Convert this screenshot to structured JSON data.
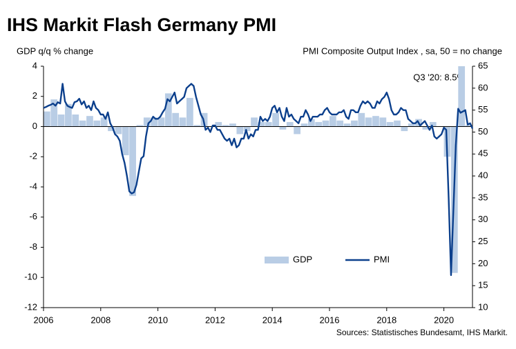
{
  "chart_data": {
    "type": "combo",
    "title": "IHS Markit Flash Germany PMI",
    "y_label": "GDP q/q % change",
    "y2_label": "PMI Composite  Output Index , sa, 50 = no change",
    "source": "Sources: Statistisches Bundesamt, IHS Markit.",
    "annotations": [
      {
        "text": "Q3 '20: 8.5%"
      }
    ],
    "legend": "lower right",
    "xlim": [
      2006,
      2021
    ],
    "xticks": [
      2006,
      2008,
      2010,
      2012,
      2014,
      2016,
      2018,
      2020
    ],
    "ylim": [
      -12,
      4
    ],
    "yticks": [
      4,
      2,
      0,
      -2,
      -4,
      -6,
      -8,
      -10,
      -12
    ],
    "y2lim": [
      10,
      65
    ],
    "y2ticks": [
      65,
      60,
      55,
      50,
      45,
      40,
      35,
      30,
      25,
      20,
      15,
      10
    ],
    "series": [
      {
        "name": "GDP",
        "type": "bar",
        "color": "#b9cde5",
        "x": [
          2006,
          2006.25,
          2006.5,
          2006.75,
          2007,
          2007.25,
          2007.5,
          2007.75,
          2008,
          2008.25,
          2008.5,
          2008.75,
          2009,
          2009.25,
          2009.5,
          2009.75,
          2010,
          2010.25,
          2010.5,
          2010.75,
          2011,
          2011.25,
          2011.5,
          2011.75,
          2012,
          2012.25,
          2012.5,
          2012.75,
          2013,
          2013.25,
          2013.5,
          2013.75,
          2014,
          2014.25,
          2014.5,
          2014.75,
          2015,
          2015.25,
          2015.5,
          2015.75,
          2016,
          2016.25,
          2016.5,
          2016.75,
          2017,
          2017.25,
          2017.5,
          2017.75,
          2018,
          2018.25,
          2018.5,
          2018.75,
          2019,
          2019.25,
          2019.5,
          2019.75,
          2020,
          2020.25,
          2020.5,
          2020.75
        ],
        "values": [
          1.0,
          1.8,
          0.8,
          1.5,
          0.8,
          0.4,
          0.7,
          0.4,
          0.6,
          -0.3,
          -0.5,
          -1.9,
          -4.6,
          0.1,
          0.6,
          0.6,
          0.6,
          2.2,
          0.9,
          0.6,
          1.9,
          0.1,
          0.9,
          0.0,
          0.3,
          0.1,
          0.2,
          -0.5,
          -0.3,
          0.6,
          0.3,
          0.3,
          0.9,
          -0.2,
          0.3,
          -0.5,
          0.2,
          0.5,
          0.3,
          0.4,
          0.7,
          0.4,
          0.2,
          0.4,
          0.9,
          0.6,
          0.7,
          0.6,
          0.3,
          0.4,
          -0.3,
          0.2,
          0.5,
          -0.2,
          0.3,
          0.0,
          -2.0,
          -9.7,
          8.5,
          0.1
        ]
      },
      {
        "name": "PMI",
        "type": "line",
        "color": "#0b3f8c",
        "axis": "y2",
        "x": [
          2006,
          2006.083,
          2006.167,
          2006.25,
          2006.333,
          2006.417,
          2006.5,
          2006.583,
          2006.667,
          2006.75,
          2006.833,
          2006.917,
          2007,
          2007.083,
          2007.167,
          2007.25,
          2007.333,
          2007.417,
          2007.5,
          2007.583,
          2007.667,
          2007.75,
          2007.833,
          2007.917,
          2008,
          2008.083,
          2008.167,
          2008.25,
          2008.333,
          2008.417,
          2008.5,
          2008.583,
          2008.667,
          2008.75,
          2008.833,
          2008.917,
          2009,
          2009.083,
          2009.167,
          2009.25,
          2009.333,
          2009.417,
          2009.5,
          2009.583,
          2009.667,
          2009.75,
          2009.833,
          2009.917,
          2010,
          2010.083,
          2010.167,
          2010.25,
          2010.333,
          2010.417,
          2010.5,
          2010.583,
          2010.667,
          2010.75,
          2010.833,
          2010.917,
          2011,
          2011.083,
          2011.167,
          2011.25,
          2011.333,
          2011.417,
          2011.5,
          2011.583,
          2011.667,
          2011.75,
          2011.833,
          2011.917,
          2012,
          2012.083,
          2012.167,
          2012.25,
          2012.333,
          2012.417,
          2012.5,
          2012.583,
          2012.667,
          2012.75,
          2012.833,
          2012.917,
          2013,
          2013.083,
          2013.167,
          2013.25,
          2013.333,
          2013.417,
          2013.5,
          2013.583,
          2013.667,
          2013.75,
          2013.833,
          2013.917,
          2014,
          2014.083,
          2014.167,
          2014.25,
          2014.333,
          2014.417,
          2014.5,
          2014.583,
          2014.667,
          2014.75,
          2014.833,
          2014.917,
          2015,
          2015.083,
          2015.167,
          2015.25,
          2015.333,
          2015.417,
          2015.5,
          2015.583,
          2015.667,
          2015.75,
          2015.833,
          2015.917,
          2016,
          2016.083,
          2016.167,
          2016.25,
          2016.333,
          2016.417,
          2016.5,
          2016.583,
          2016.667,
          2016.75,
          2016.833,
          2016.917,
          2017,
          2017.083,
          2017.167,
          2017.25,
          2017.333,
          2017.417,
          2017.5,
          2017.583,
          2017.667,
          2017.75,
          2017.833,
          2017.917,
          2018,
          2018.083,
          2018.167,
          2018.25,
          2018.333,
          2018.417,
          2018.5,
          2018.583,
          2018.667,
          2018.75,
          2018.833,
          2018.917,
          2019,
          2019.083,
          2019.167,
          2019.25,
          2019.333,
          2019.417,
          2019.5,
          2019.583,
          2019.667,
          2019.75,
          2019.833,
          2019.917,
          2020,
          2020.083,
          2020.167,
          2020.25,
          2020.333,
          2020.417,
          2020.5,
          2020.583,
          2020.667,
          2020.75,
          2020.833,
          2020.917,
          2021
        ],
        "values": [
          55.5,
          55.7,
          56.0,
          56.2,
          56.5,
          56.0,
          56.8,
          56.5,
          61.0,
          57.0,
          56.0,
          55.7,
          55.5,
          56.8,
          57.0,
          57.6,
          56.3,
          57.0,
          55.5,
          56.0,
          55.0,
          57.0,
          55.5,
          55.0,
          54.0,
          54.0,
          53.0,
          54.5,
          52.0,
          51.0,
          49.5,
          49.0,
          48.0,
          45.0,
          43.0,
          40.0,
          36.5,
          36.0,
          36.3,
          38.0,
          41.0,
          44.0,
          44.5,
          49.0,
          52.0,
          52.5,
          53.5,
          53.0,
          53.0,
          53.5,
          54.5,
          55.3,
          57.5,
          57.0,
          58.0,
          59.0,
          56.5,
          57.0,
          57.5,
          58.0,
          60.0,
          60.5,
          61.0,
          60.5,
          58.0,
          56.0,
          54.0,
          53.0,
          50.5,
          51.0,
          50.0,
          51.5,
          51.5,
          50.5,
          50.5,
          49.5,
          48.5,
          48.0,
          48.5,
          47.0,
          48.5,
          46.5,
          47.0,
          48.5,
          48.5,
          50.5,
          48.5,
          49.5,
          49.0,
          50.5,
          50.5,
          53.5,
          52.5,
          53.0,
          52.5,
          53.5,
          55.5,
          56.0,
          54.5,
          55.5,
          53.5,
          52.5,
          55.5,
          53.5,
          54.0,
          53.0,
          52.5,
          52.0,
          53.5,
          53.5,
          55.0,
          54.0,
          52.5,
          53.5,
          53.5,
          53.5,
          54.0,
          54.0,
          55.0,
          55.5,
          54.5,
          54.0,
          54.0,
          54.0,
          54.5,
          54.5,
          55.0,
          53.5,
          53.0,
          55.0,
          55.0,
          54.5,
          54.5,
          56.0,
          57.0,
          56.5,
          57.0,
          56.5,
          55.5,
          55.5,
          57.0,
          56.5,
          57.5,
          58.0,
          59.0,
          57.5,
          55.0,
          54.0,
          54.0,
          54.5,
          55.5,
          55.0,
          55.0,
          53.0,
          52.5,
          52.0,
          52.0,
          52.5,
          51.5,
          52.0,
          52.5,
          51.5,
          50.5,
          51.5,
          49.0,
          48.5,
          49.0,
          49.5,
          51.0,
          50.5,
          35.0,
          17.4,
          32.3,
          47.0,
          55.3,
          54.4,
          54.7,
          55.0,
          51.7,
          52.0,
          50.8
        ]
      }
    ]
  }
}
